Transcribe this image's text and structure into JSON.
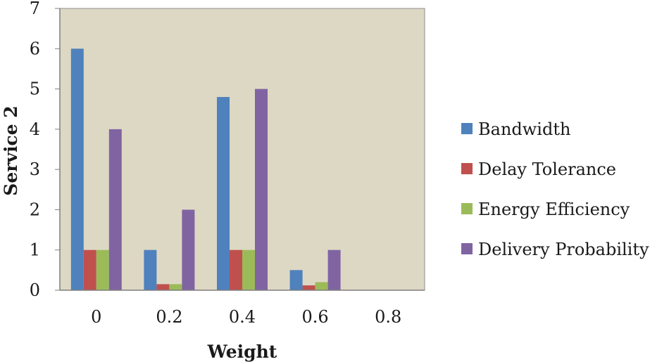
{
  "chart_data": {
    "type": "bar",
    "title": "",
    "xlabel": "Weight",
    "ylabel": "Service 2",
    "categories": [
      "0",
      "0.2",
      "0.4",
      "0.6",
      "0.8"
    ],
    "ylim": [
      0,
      7
    ],
    "yticks": [
      "0",
      "1",
      "2",
      "3",
      "4",
      "5",
      "6",
      "7"
    ],
    "grid": false,
    "legend_position": "right",
    "plot_background": "#ddd8c4",
    "series": [
      {
        "name": "Bandwidth",
        "color": "#4f81bd",
        "values": [
          6,
          1,
          4.8,
          0.5,
          0
        ]
      },
      {
        "name": "Delay Tolerance",
        "color": "#c0504d",
        "values": [
          1,
          0.15,
          1,
          0.12,
          0
        ]
      },
      {
        "name": "Energy Efficiency",
        "color": "#9bbb59",
        "values": [
          1,
          0.15,
          1,
          0.2,
          0
        ]
      },
      {
        "name": "Delivery Probability",
        "color": "#8064a2",
        "values": [
          4,
          2,
          5,
          1,
          0
        ]
      }
    ]
  }
}
